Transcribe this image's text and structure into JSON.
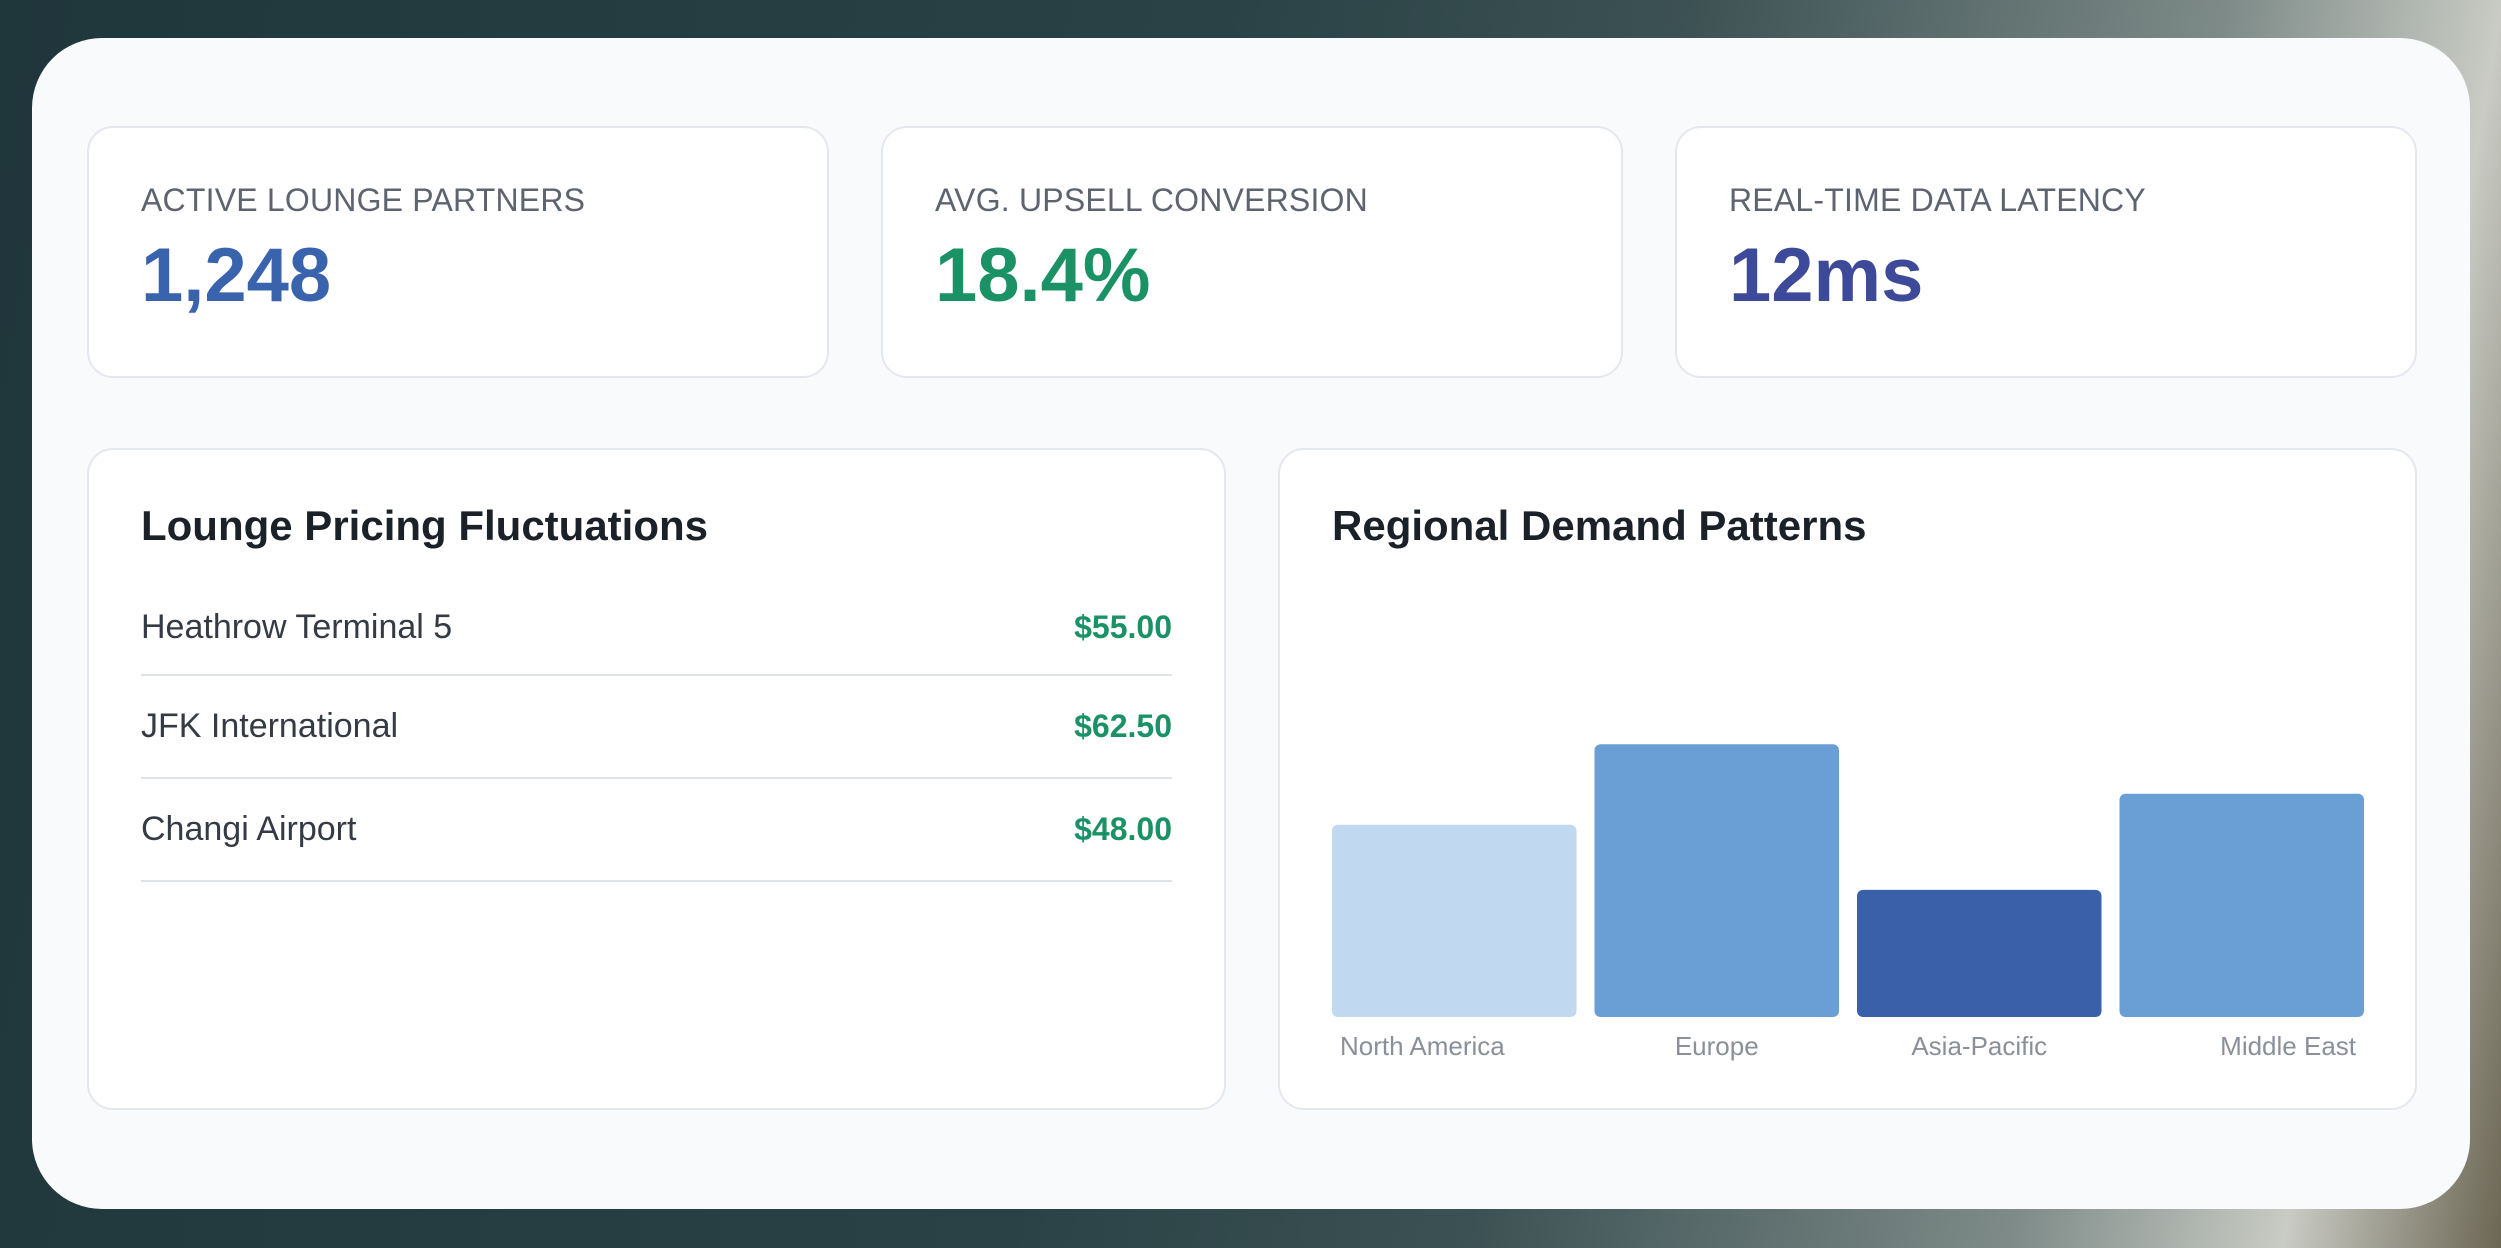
{
  "stats": [
    {
      "label": "ACTIVE LOUNGE PARTNERS",
      "value": "1,248",
      "color": "#3a63ad"
    },
    {
      "label": "AVG. UPSELL CONVERSION",
      "value": "18.4%",
      "color": "#1a9266"
    },
    {
      "label": "REAL-TIME DATA LATENCY",
      "value": "12ms",
      "color": "#3d4a9a"
    }
  ],
  "pricing": {
    "title": "Lounge Pricing Fluctuations",
    "rows": [
      {
        "name": "Heathrow Terminal 5",
        "price": "$55.00"
      },
      {
        "name": "JFK International",
        "price": "$62.50"
      },
      {
        "name": "Changi Airport",
        "price": "$48.00"
      }
    ]
  },
  "demand": {
    "title": "Regional Demand Patterns"
  },
  "chart_data": {
    "type": "bar",
    "title": "Regional Demand Patterns",
    "categories": [
      "North America",
      "Europe",
      "Asia-Pacific",
      "Middle East"
    ],
    "values": [
      62,
      88,
      41,
      72
    ],
    "colors": [
      "#c0d9f1",
      "#6a9fd6",
      "#3960a8",
      "#6a9fd6"
    ],
    "ylim": [
      0,
      100
    ],
    "grid": false,
    "legend": "none"
  }
}
